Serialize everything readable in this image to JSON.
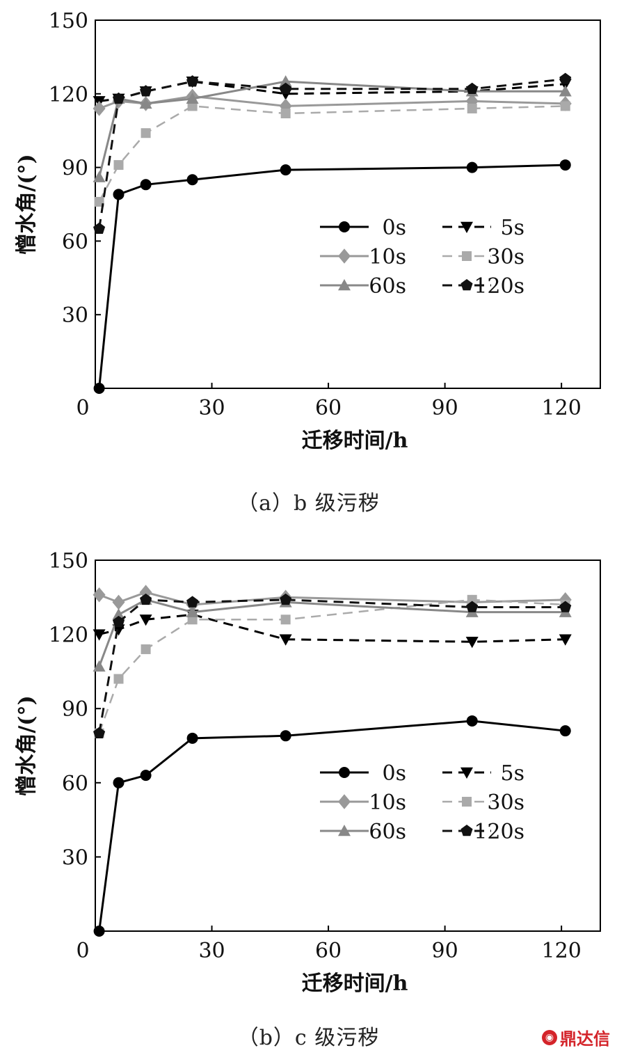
{
  "colors": {
    "s0s": "#000000",
    "s5s": "#000000",
    "s10s": "#999999",
    "s30s": "#aaaaaa",
    "s60s": "#888888",
    "s120s": "#111111"
  },
  "chart_data": [
    {
      "type": "line",
      "caption": "（a）b 级污秽",
      "xlabel": "迁移时间/h",
      "ylabel": "憎水角/(°)",
      "xlim": [
        0,
        130
      ],
      "ylim": [
        0,
        150
      ],
      "xticks": [
        0,
        30,
        60,
        90,
        120
      ],
      "yticks": [
        30,
        60,
        90,
        120,
        150
      ],
      "legend_position": "center-right",
      "series": [
        {
          "name": "0s",
          "key": "s0s",
          "x": [
            1,
            6,
            13,
            25,
            49,
            97,
            121
          ],
          "values": [
            0,
            79,
            83,
            85,
            89,
            90,
            91
          ]
        },
        {
          "name": "5s",
          "key": "s5s",
          "x": [
            1,
            6,
            13,
            25,
            49,
            97,
            121
          ],
          "values": [
            117,
            118,
            121,
            125,
            120,
            121,
            124
          ]
        },
        {
          "name": "10s",
          "key": "s10s",
          "x": [
            1,
            6,
            13,
            25,
            49,
            97,
            121
          ],
          "values": [
            114,
            117,
            116,
            119,
            115,
            117,
            116
          ]
        },
        {
          "name": "30s",
          "key": "s30s",
          "x": [
            1,
            6,
            13,
            25,
            49,
            97,
            121
          ],
          "values": [
            76,
            91,
            104,
            115,
            112,
            114,
            115
          ]
        },
        {
          "name": "60s",
          "key": "s60s",
          "x": [
            1,
            6,
            13,
            25,
            49,
            97,
            121
          ],
          "values": [
            86,
            118,
            116,
            118,
            125,
            121,
            121
          ]
        },
        {
          "name": "120s",
          "key": "s120s",
          "x": [
            1,
            6,
            13,
            25,
            49,
            97,
            121
          ],
          "values": [
            65,
            118,
            121,
            125,
            122,
            122,
            126
          ]
        }
      ]
    },
    {
      "type": "line",
      "caption": "（b）c 级污秽",
      "xlabel": "迁移时间/h",
      "ylabel": "憎水角/(°)",
      "xlim": [
        0,
        130
      ],
      "ylim": [
        0,
        150
      ],
      "xticks": [
        0,
        30,
        60,
        90,
        120
      ],
      "yticks": [
        30,
        60,
        90,
        120,
        150
      ],
      "legend_position": "center-right",
      "series": [
        {
          "name": "0s",
          "key": "s0s",
          "x": [
            1,
            6,
            13,
            25,
            49,
            97,
            121
          ],
          "values": [
            0,
            60,
            63,
            78,
            79,
            85,
            81
          ]
        },
        {
          "name": "5s",
          "key": "s5s",
          "x": [
            1,
            6,
            13,
            25,
            49,
            97,
            121
          ],
          "values": [
            120,
            122,
            126,
            128,
            118,
            117,
            118
          ]
        },
        {
          "name": "10s",
          "key": "s10s",
          "x": [
            1,
            6,
            13,
            25,
            49,
            97,
            121
          ],
          "values": [
            136,
            133,
            137,
            132,
            135,
            133,
            134
          ]
        },
        {
          "name": "30s",
          "key": "s30s",
          "x": [
            1,
            6,
            13,
            25,
            49,
            97,
            121
          ],
          "values": [
            80,
            102,
            114,
            126,
            126,
            134,
            132
          ]
        },
        {
          "name": "60s",
          "key": "s60s",
          "x": [
            1,
            6,
            13,
            25,
            49,
            97,
            121
          ],
          "values": [
            107,
            128,
            134,
            129,
            133,
            129,
            129
          ]
        },
        {
          "name": "120s",
          "key": "s120s",
          "x": [
            1,
            6,
            13,
            25,
            49,
            97,
            121
          ],
          "values": [
            80,
            125,
            134,
            133,
            134,
            131,
            131
          ]
        }
      ]
    }
  ],
  "watermark": {
    "text": "鼎达信",
    "icon": "logo-icon"
  }
}
